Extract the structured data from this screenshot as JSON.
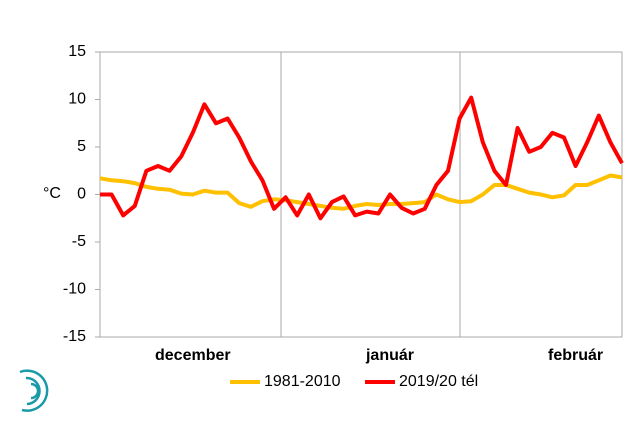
{
  "chart_data": {
    "type": "line",
    "y_label": "°C",
    "categories": [
      null,
      null,
      null,
      null,
      null,
      null,
      null,
      null,
      "december",
      null,
      null,
      null,
      null,
      null,
      null,
      null,
      null,
      null,
      null,
      null,
      null,
      null,
      null,
      null,
      null,
      "január",
      null,
      null,
      null,
      null,
      null,
      null,
      null,
      null,
      null,
      null,
      null,
      null,
      null,
      null,
      null,
      "február",
      null,
      null,
      null,
      null
    ],
    "series": [
      {
        "name": "1981-2010",
        "color": "#ffc000",
        "values": [
          1.7,
          1.5,
          1.4,
          1.2,
          0.8,
          0.6,
          0.5,
          0.1,
          0,
          0.4,
          0.2,
          0.2,
          -0.9,
          -1.3,
          -0.7,
          -0.5,
          -0.6,
          -0.8,
          -1,
          -1.2,
          -1.4,
          -1.5,
          -1.2,
          -1,
          -1.1,
          -1,
          -1,
          -0.9,
          -0.8,
          0,
          -0.5,
          -0.8,
          -0.7,
          0,
          1,
          1,
          0.6,
          0.2,
          0,
          -0.3,
          -0.1,
          1,
          1,
          1.5,
          2,
          1.8
        ]
      },
      {
        "name": "2019/20 tél",
        "color": "#ff0000",
        "values": [
          0,
          0,
          -2.2,
          -1.2,
          2.5,
          3,
          2.5,
          4,
          6.5,
          9.5,
          7.5,
          8,
          6,
          3.5,
          1.5,
          -1.5,
          -0.3,
          -2.2,
          0,
          -2.5,
          -0.8,
          -0.2,
          -2.2,
          -1.8,
          -2,
          0,
          -1.4,
          -2,
          -1.5,
          1,
          2.5,
          8,
          10.2,
          5.5,
          2.5,
          1,
          7,
          4.5,
          5,
          6.5,
          6,
          3,
          5.5,
          8.3,
          5.5,
          3.3
        ]
      }
    ],
    "ylim": [
      -15,
      15
    ],
    "yticks": [
      -15,
      -10,
      -5,
      0,
      5,
      10,
      15
    ]
  }
}
